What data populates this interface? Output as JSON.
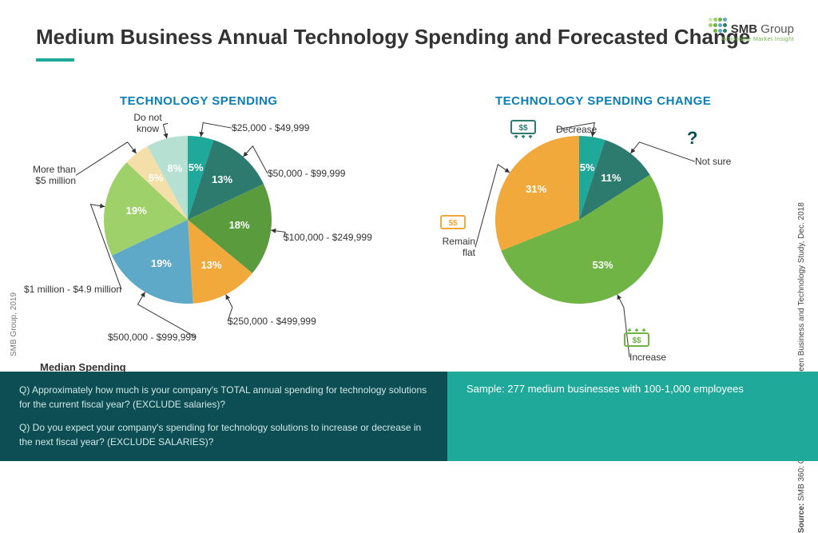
{
  "title": "Medium Business Annual Technology Spending and Forecasted Change",
  "logo": {
    "name": "SMB",
    "suffix": "Group",
    "tagline": "Actionable Market Insight"
  },
  "chart1": {
    "title": "TECHNOLOGY SPENDING",
    "type": "pie",
    "radius": 105,
    "start_angle": -90,
    "slices": [
      {
        "label": "$25,000 - $49,999",
        "short": "5%",
        "value": 5,
        "color": "#1fa99a"
      },
      {
        "label": "$50,000 - $99,999",
        "short": "13%",
        "value": 13,
        "color": "#2d7a6f"
      },
      {
        "label": "$100,000 - $249,999",
        "short": "18%",
        "value": 18,
        "color": "#5a9b3e"
      },
      {
        "label": "$250,000 - $499,999",
        "short": "13%",
        "value": 13,
        "color": "#f2a93b"
      },
      {
        "label": "$500,000 - $999,999",
        "short": "19%",
        "value": 19,
        "color": "#5fa9c8"
      },
      {
        "label": "$1 million - $4.9 million",
        "short": "19%",
        "value": 19,
        "color": "#9fd16b"
      },
      {
        "label": "More than $5 million",
        "short": "5%",
        "value": 5,
        "color": "#f5dfa9"
      },
      {
        "label": "Do not know",
        "short": "8%",
        "value": 8,
        "color": "#b6e0d1"
      }
    ],
    "median_label": "Median Spending"
  },
  "chart2": {
    "title": "TECHNOLOGY SPENDING CHANGE",
    "type": "pie",
    "radius": 105,
    "start_angle": -90,
    "slices": [
      {
        "label": "Decrease",
        "short": "5%",
        "value": 5,
        "color": "#1fa99a",
        "icon": "down",
        "icon_color": "#2d7a6f"
      },
      {
        "label": "Not sure",
        "short": "11%",
        "value": 11,
        "color": "#2d7a6f",
        "icon": "question",
        "icon_color": "#2d7a6f"
      },
      {
        "label": "Increase",
        "short": "53%",
        "value": 53,
        "color": "#6fb445",
        "icon": "up",
        "icon_color": "#6fb445"
      },
      {
        "label": "Remain flat",
        "short": "31%",
        "value": 31,
        "color": "#f2a93b",
        "icon": "flat",
        "icon_color": "#f2a93b"
      }
    ]
  },
  "footer": {
    "q1": "Q) Approximately how much is your company's TOTAL annual spending for technology solutions for the current fiscal year? (EXCLUDE salaries)?",
    "q2": "Q) Do you expect your company's spending for technology solutions to increase or decrease in the next fiscal year? (EXCLUDE SALARIES)?",
    "sample": "Sample: 277 medium businesses with 100-1,000 employees"
  },
  "side_credit": "SMB Group, 2019",
  "side_source_prefix": "Source: ",
  "side_source": "SMB 360: Connecting the Dots Between Business and Technology  Study, Dec. 2018"
}
